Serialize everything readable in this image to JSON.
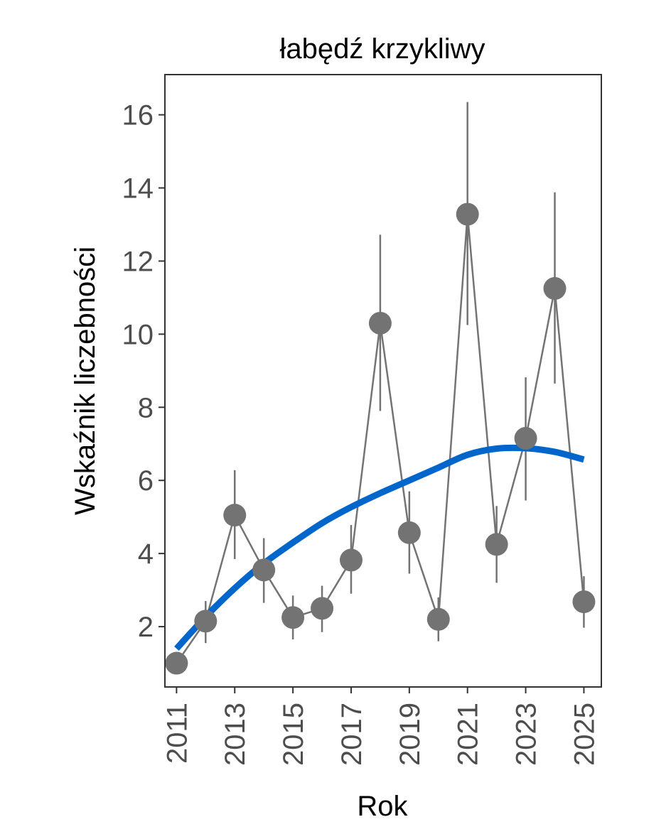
{
  "chart_data": {
    "type": "line",
    "title": "łabędź krzykliwy",
    "xlabel": "Rok",
    "ylabel": "Wskaźnik liczebności",
    "xlim": [
      2010.6,
      2025.6
    ],
    "ylim": [
      0.35,
      17.1
    ],
    "x_ticks": [
      2011,
      2013,
      2015,
      2017,
      2019,
      2021,
      2023,
      2025
    ],
    "y_ticks": [
      2,
      4,
      6,
      8,
      10,
      12,
      14,
      16
    ],
    "grid": false,
    "series": [
      {
        "kind": "observed",
        "color": "#737373",
        "x": [
          2011,
          2012,
          2013,
          2014,
          2015,
          2016,
          2017,
          2018,
          2019,
          2020,
          2021,
          2022,
          2023,
          2024,
          2025
        ],
        "y": [
          1.0,
          2.15,
          5.05,
          3.55,
          2.25,
          2.5,
          3.82,
          10.3,
          4.57,
          2.2,
          13.28,
          4.25,
          7.15,
          11.25,
          2.68
        ],
        "lower": [
          1.0,
          1.55,
          3.85,
          2.65,
          1.65,
          1.85,
          2.9,
          7.9,
          3.45,
          1.6,
          10.25,
          3.2,
          5.45,
          8.65,
          1.97
        ],
        "upper": [
          1.0,
          2.7,
          6.28,
          4.42,
          2.85,
          3.12,
          4.78,
          12.72,
          5.7,
          2.8,
          16.35,
          5.3,
          8.82,
          13.88,
          3.38
        ]
      },
      {
        "kind": "trend",
        "color": "#0066cc",
        "x": [
          2011,
          2012,
          2013,
          2014,
          2015,
          2016,
          2017,
          2018,
          2019,
          2020,
          2021,
          2022,
          2023,
          2024,
          2025
        ],
        "y": [
          1.4,
          2.27,
          3.05,
          3.73,
          4.3,
          4.83,
          5.27,
          5.65,
          6.0,
          6.35,
          6.7,
          6.87,
          6.88,
          6.78,
          6.57
        ]
      }
    ]
  }
}
